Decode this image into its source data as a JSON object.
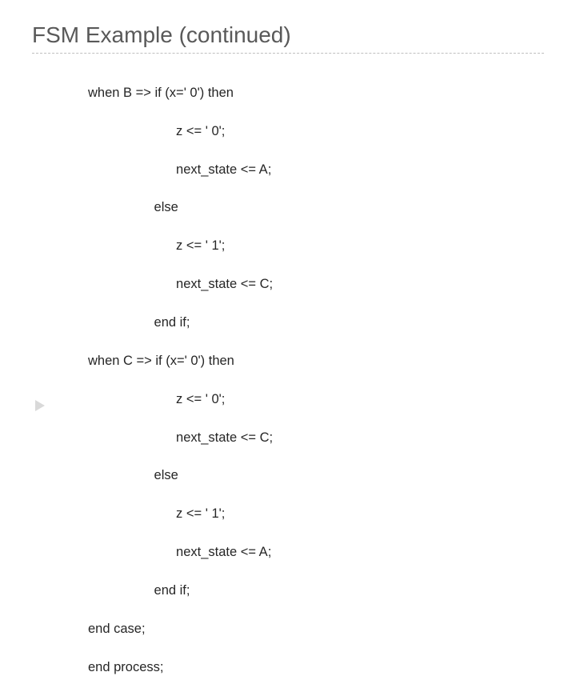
{
  "title": "FSM Example (continued)",
  "code": {
    "l1": "when B => if (x=' 0') then",
    "l2": "                        z <= ' 0';",
    "l3": "                        next_state <= A;",
    "l4": "                  else",
    "l5": "                        z <= ' 1';",
    "l6": "                        next_state <= C;",
    "l7": "                  end if;",
    "l8": "when C => if (x=' 0') then",
    "l9": "                        z <= ' 0';",
    "l10": "                        next_state <= C;",
    "l11": "                  else",
    "l12": "                        z <= ' 1';",
    "l13": "                        next_state <= A;",
    "l14": "                  end if;",
    "l15": "end case;",
    "l16": "end process;"
  },
  "colors": {
    "title": "#595959",
    "text": "#262626",
    "divider": "#bfbfbf",
    "arrow": "#d9d9d9",
    "background": "#ffffff"
  },
  "fonts": {
    "title_size": 28,
    "code_size": 16.5,
    "family": "Arial"
  }
}
